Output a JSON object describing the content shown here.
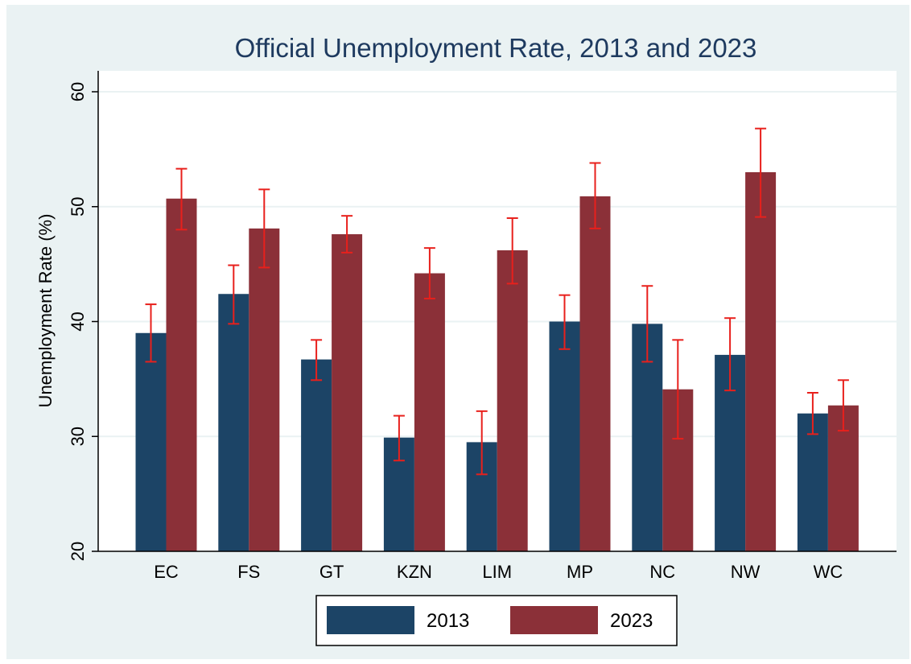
{
  "chart_data": {
    "type": "bar",
    "title": "Official Unemployment Rate, 2013 and 2023",
    "xlabel": "",
    "ylabel": "Unemployment Rate (%)",
    "ylim": [
      20,
      60
    ],
    "yticks": [
      20,
      30,
      40,
      50,
      60
    ],
    "grid": true,
    "legend_position": "bottom",
    "categories": [
      "EC",
      "FS",
      "GT",
      "KZN",
      "LIM",
      "MP",
      "NC",
      "NW",
      "WC"
    ],
    "series": [
      {
        "name": "2013",
        "color": "#1c4466",
        "values": [
          39.0,
          42.4,
          36.7,
          29.9,
          29.5,
          40.0,
          39.8,
          37.1,
          32.0
        ],
        "error_low": [
          36.5,
          39.8,
          34.9,
          27.9,
          26.7,
          37.6,
          36.5,
          34.0,
          30.2
        ],
        "error_high": [
          41.5,
          44.9,
          38.4,
          31.8,
          32.2,
          42.3,
          43.1,
          40.3,
          33.8
        ]
      },
      {
        "name": "2023",
        "color": "#8b3038",
        "values": [
          50.7,
          48.1,
          47.6,
          44.2,
          46.2,
          50.9,
          34.1,
          53.0,
          32.7
        ],
        "error_low": [
          48.0,
          44.7,
          46.0,
          42.0,
          43.3,
          48.1,
          29.8,
          49.1,
          30.5
        ],
        "error_high": [
          53.3,
          51.5,
          49.2,
          46.4,
          49.0,
          53.8,
          38.4,
          56.8,
          34.9
        ]
      }
    ],
    "error_bar_color": "#e8201c"
  }
}
